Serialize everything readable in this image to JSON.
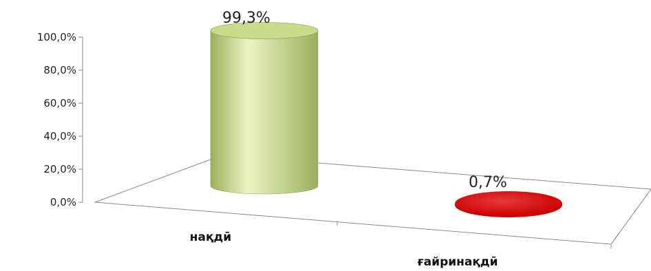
{
  "chart_data": {
    "type": "bar",
    "style": "3d-cylinder",
    "categories": [
      "нақдӣ",
      "ғайринақдӣ"
    ],
    "values": [
      99.3,
      0.7
    ],
    "data_labels": [
      "99,3%",
      "0,7%"
    ],
    "tick_labels": [
      "0,0%",
      "20,0%",
      "40,0%",
      "60,0%",
      "80,0%",
      "100,0%"
    ],
    "ylim": [
      0,
      100
    ],
    "grid": false,
    "title": "",
    "xlabel": "",
    "ylabel": "",
    "colors": {
      "bar_1": "#c8dc8c",
      "bar_1_highlight": "#eaf5c4",
      "bar_1_shade": "#9bb05c",
      "bar_2": "#cc0000",
      "bar_2_highlight": "#e63a3a",
      "axis": "#888888"
    }
  }
}
